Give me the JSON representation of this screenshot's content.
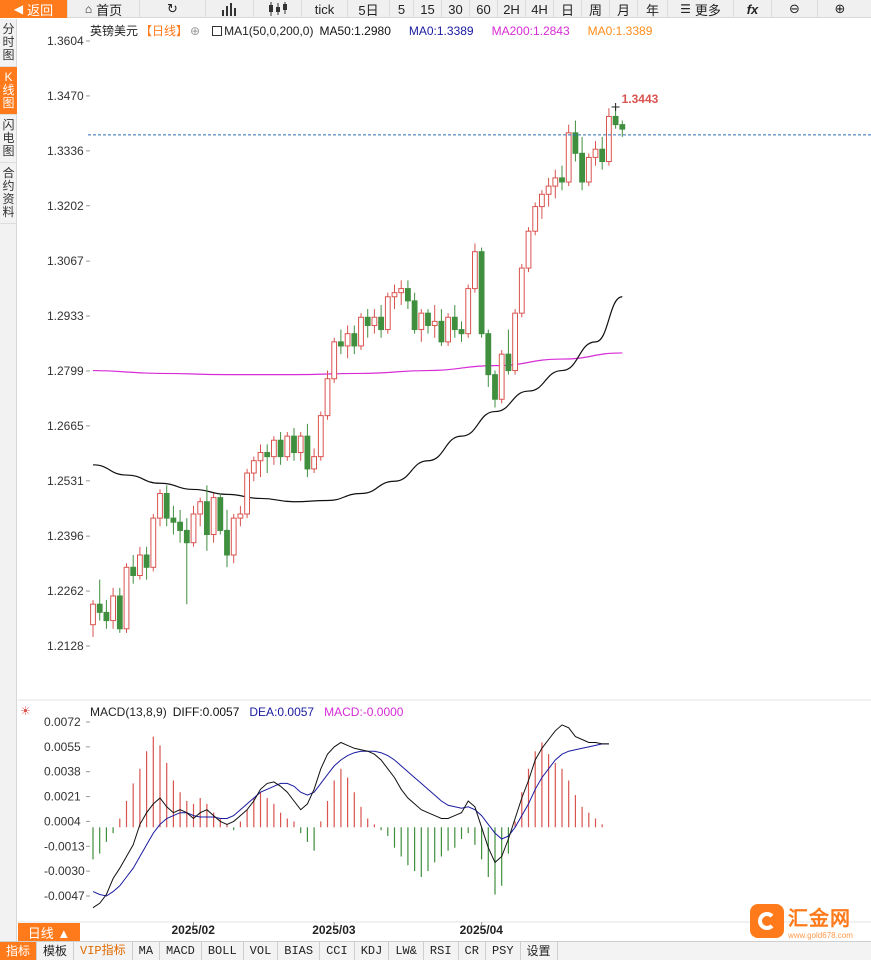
{
  "toolbar": {
    "back": "返回",
    "home": "首页",
    "tick": "tick",
    "periods": [
      "5日",
      "5",
      "15",
      "30",
      "60",
      "2H",
      "4H",
      "日",
      "周",
      "月",
      "年"
    ],
    "more": "更多",
    "fx": "fx"
  },
  "side_tabs": [
    "分时图",
    "K线图",
    "闪电图",
    "合约资料"
  ],
  "main_legend": {
    "symbol": "英镑美元",
    "period": "【日线】",
    "ma1": "MA1(50,0,200,0)",
    "ma50": "MA50:1.2980",
    "ma0a": "MA0:1.3389",
    "ma200": "MA200:1.2843",
    "ma0b": "MA0:1.3389",
    "colors": {
      "ma50": "#111111",
      "ma0a": "#1a1aa0",
      "ma200": "#d62bd6",
      "ma0b": "#ff8c1a"
    }
  },
  "macd_legend": {
    "title": "MACD(13,8,9)",
    "diff": "DIFF:0.0057",
    "dea": "DEA:0.0057",
    "macd": "MACD:-0.0000",
    "colors": {
      "diff": "#111111",
      "dea": "#1a1aa0",
      "macd": "#d62bd6"
    }
  },
  "price_axis": [
    "1.3604",
    "1.3470",
    "1.3336",
    "1.3202",
    "1.3067",
    "1.2933",
    "1.2799",
    "1.2665",
    "1.2531",
    "1.2396",
    "1.2262",
    "1.2128"
  ],
  "macd_axis": [
    "0.0072",
    "0.0055",
    "0.0038",
    "0.0021",
    "0.0004",
    "-0.0013",
    "-0.0030",
    "-0.0047"
  ],
  "date_labels": [
    "2025/02",
    "2025/03",
    "2025/04"
  ],
  "high_label": "1.3443",
  "current_price_line": 1.3375,
  "daily_button": "日线 ▲",
  "bottom_tabs": [
    "指标",
    "模板",
    "VIP指标",
    "MA",
    "MACD",
    "BOLL",
    "VOL",
    "BIAS",
    "CCI",
    "KDJ",
    "LW&",
    "RSI",
    "CR",
    "PSY",
    "设置"
  ],
  "brand": {
    "name": "汇金网",
    "url": "www.gold678.com"
  },
  "colors": {
    "up": "#d9534f",
    "down": "#3f8f3f",
    "accent": "#ff7a1a",
    "price_line": "#2a6fb3"
  },
  "chart_data": {
    "type": "candlestick",
    "title": "英镑美元 日线",
    "ylim": [
      1.2128,
      1.3604
    ],
    "candles": [
      [
        1.218,
        1.224,
        1.215,
        1.223
      ],
      [
        1.223,
        1.229,
        1.219,
        1.221
      ],
      [
        1.221,
        1.224,
        1.217,
        1.219
      ],
      [
        1.219,
        1.227,
        1.217,
        1.225
      ],
      [
        1.225,
        1.227,
        1.216,
        1.217
      ],
      [
        1.217,
        1.233,
        1.216,
        1.232
      ],
      [
        1.232,
        1.235,
        1.228,
        1.23
      ],
      [
        1.23,
        1.237,
        1.229,
        1.235
      ],
      [
        1.235,
        1.237,
        1.229,
        1.232
      ],
      [
        1.232,
        1.245,
        1.231,
        1.244
      ],
      [
        1.244,
        1.251,
        1.242,
        1.25
      ],
      [
        1.25,
        1.252,
        1.242,
        1.244
      ],
      [
        1.244,
        1.247,
        1.24,
        1.243
      ],
      [
        1.243,
        1.246,
        1.238,
        1.241
      ],
      [
        1.241,
        1.244,
        1.223,
        1.238
      ],
      [
        1.238,
        1.247,
        1.237,
        1.245
      ],
      [
        1.245,
        1.249,
        1.242,
        1.248
      ],
      [
        1.248,
        1.252,
        1.236,
        1.24
      ],
      [
        1.24,
        1.25,
        1.238,
        1.249
      ],
      [
        1.249,
        1.25,
        1.24,
        1.241
      ],
      [
        1.241,
        1.246,
        1.232,
        1.235
      ],
      [
        1.235,
        1.245,
        1.233,
        1.244
      ],
      [
        1.244,
        1.247,
        1.242,
        1.245
      ],
      [
        1.245,
        1.256,
        1.244,
        1.255
      ],
      [
        1.255,
        1.259,
        1.253,
        1.258
      ],
      [
        1.258,
        1.262,
        1.254,
        1.26
      ],
      [
        1.26,
        1.262,
        1.255,
        1.259
      ],
      [
        1.259,
        1.264,
        1.257,
        1.263
      ],
      [
        1.263,
        1.265,
        1.257,
        1.259
      ],
      [
        1.259,
        1.265,
        1.258,
        1.264
      ],
      [
        1.264,
        1.266,
        1.258,
        1.26
      ],
      [
        1.26,
        1.265,
        1.258,
        1.264
      ],
      [
        1.264,
        1.267,
        1.254,
        1.256
      ],
      [
        1.256,
        1.261,
        1.255,
        1.259
      ],
      [
        1.259,
        1.27,
        1.258,
        1.269
      ],
      [
        1.269,
        1.28,
        1.268,
        1.278
      ],
      [
        1.278,
        1.288,
        1.277,
        1.287
      ],
      [
        1.287,
        1.29,
        1.284,
        1.286
      ],
      [
        1.286,
        1.291,
        1.283,
        1.289
      ],
      [
        1.289,
        1.291,
        1.284,
        1.286
      ],
      [
        1.286,
        1.294,
        1.285,
        1.293
      ],
      [
        1.293,
        1.295,
        1.288,
        1.291
      ],
      [
        1.291,
        1.295,
        1.289,
        1.293
      ],
      [
        1.293,
        1.296,
        1.288,
        1.29
      ],
      [
        1.29,
        1.299,
        1.289,
        1.298
      ],
      [
        1.298,
        1.301,
        1.295,
        1.299
      ],
      [
        1.299,
        1.302,
        1.296,
        1.3
      ],
      [
        1.3,
        1.302,
        1.295,
        1.297
      ],
      [
        1.297,
        1.299,
        1.289,
        1.29
      ],
      [
        1.29,
        1.295,
        1.287,
        1.294
      ],
      [
        1.294,
        1.295,
        1.289,
        1.291
      ],
      [
        1.291,
        1.296,
        1.288,
        1.292
      ],
      [
        1.292,
        1.295,
        1.286,
        1.287
      ],
      [
        1.287,
        1.294,
        1.286,
        1.293
      ],
      [
        1.293,
        1.296,
        1.288,
        1.29
      ],
      [
        1.29,
        1.292,
        1.287,
        1.289
      ],
      [
        1.289,
        1.301,
        1.288,
        1.3
      ],
      [
        1.3,
        1.311,
        1.299,
        1.309
      ],
      [
        1.309,
        1.31,
        1.288,
        1.289
      ],
      [
        1.289,
        1.29,
        1.276,
        1.279
      ],
      [
        1.279,
        1.28,
        1.271,
        1.273
      ],
      [
        1.273,
        1.285,
        1.272,
        1.284
      ],
      [
        1.284,
        1.29,
        1.279,
        1.28
      ],
      [
        1.28,
        1.295,
        1.279,
        1.294
      ],
      [
        1.294,
        1.306,
        1.293,
        1.305
      ],
      [
        1.305,
        1.315,
        1.304,
        1.314
      ],
      [
        1.314,
        1.321,
        1.313,
        1.32
      ],
      [
        1.32,
        1.324,
        1.317,
        1.323
      ],
      [
        1.323,
        1.327,
        1.32,
        1.325
      ],
      [
        1.325,
        1.329,
        1.322,
        1.327
      ],
      [
        1.327,
        1.33,
        1.324,
        1.326
      ],
      [
        1.326,
        1.34,
        1.325,
        1.338
      ],
      [
        1.338,
        1.341,
        1.331,
        1.333
      ],
      [
        1.333,
        1.337,
        1.324,
        1.326
      ],
      [
        1.326,
        1.333,
        1.325,
        1.332
      ],
      [
        1.332,
        1.336,
        1.33,
        1.334
      ],
      [
        1.334,
        1.337,
        1.329,
        1.331
      ],
      [
        1.331,
        1.344,
        1.33,
        1.342
      ],
      [
        1.342,
        1.3443,
        1.339,
        1.34
      ],
      [
        1.34,
        1.341,
        1.337,
        1.3389
      ]
    ],
    "ma50": [
      [
        0,
        1.257
      ],
      [
        5,
        1.2545
      ],
      [
        10,
        1.2525
      ],
      [
        15,
        1.251
      ],
      [
        20,
        1.2498
      ],
      [
        25,
        1.2488
      ],
      [
        30,
        1.248
      ],
      [
        35,
        1.2483
      ],
      [
        40,
        1.25
      ],
      [
        45,
        1.253
      ],
      [
        50,
        1.258
      ],
      [
        55,
        1.264
      ],
      [
        60,
        1.27
      ],
      [
        65,
        1.275
      ],
      [
        70,
        1.28
      ],
      [
        75,
        1.287
      ],
      [
        79,
        1.298
      ]
    ],
    "ma200": [
      [
        0,
        1.28
      ],
      [
        10,
        1.2793
      ],
      [
        20,
        1.279
      ],
      [
        30,
        1.279
      ],
      [
        40,
        1.2793
      ],
      [
        50,
        1.28
      ],
      [
        60,
        1.2812
      ],
      [
        70,
        1.2828
      ],
      [
        79,
        1.2843
      ]
    ],
    "macd": {
      "ylim": [
        -0.0055,
        0.0078
      ],
      "hist": [
        -0.0022,
        -0.0018,
        -0.001,
        -0.0004,
        0.0006,
        0.0018,
        0.003,
        0.004,
        0.0052,
        0.0062,
        0.0056,
        0.0044,
        0.0032,
        0.0024,
        0.0018,
        0.0016,
        0.002,
        0.0016,
        0.001,
        0.0006,
        0.0002,
        -0.0002,
        0.0004,
        0.0012,
        0.002,
        0.0024,
        0.002,
        0.0016,
        0.001,
        0.0006,
        0.0004,
        -0.0004,
        -0.001,
        -0.0016,
        0.0004,
        0.0018,
        0.0032,
        0.004,
        0.0034,
        0.0024,
        0.0014,
        0.0006,
        0.0002,
        -0.0002,
        -0.0006,
        -0.0014,
        -0.002,
        -0.0026,
        -0.003,
        -0.0034,
        -0.003,
        -0.0024,
        -0.002,
        -0.0016,
        -0.0014,
        -0.0008,
        -0.0004,
        -0.0012,
        -0.0022,
        -0.0034,
        -0.0046,
        -0.004,
        -0.0018,
        0.0004,
        0.0024,
        0.004,
        0.0052,
        0.0058,
        0.005,
        0.0044,
        0.004,
        0.0032,
        0.0022,
        0.0014,
        0.001,
        0.0006,
        0.0002,
        0.0
      ],
      "diff": [
        -0.0055,
        -0.0052,
        -0.0046,
        -0.0035,
        -0.0028,
        -0.002,
        -0.0012,
        0.0002,
        0.001,
        0.0016,
        0.002,
        0.0014,
        0.001,
        0.0012,
        0.001,
        0.0006,
        0.001,
        0.0012,
        0.0008,
        0.0004,
        0.0002,
        0.0004,
        0.0008,
        0.0012,
        0.0018,
        0.0026,
        0.003,
        0.0031,
        0.0028,
        0.0024,
        0.0018,
        0.0012,
        0.0016,
        0.0026,
        0.004,
        0.005,
        0.0055,
        0.0058,
        0.0056,
        0.0054,
        0.0053,
        0.0052,
        0.005,
        0.0046,
        0.004,
        0.0034,
        0.0026,
        0.002,
        0.0016,
        0.0012,
        0.001,
        0.0008,
        0.0006,
        0.0006,
        0.0008,
        0.001,
        0.0018,
        0.0014,
        0.0,
        -0.0014,
        -0.0024,
        -0.002,
        -0.0008,
        0.0006,
        0.002,
        0.0032,
        0.0046,
        0.0054,
        0.006,
        0.0066,
        0.007,
        0.0068,
        0.0062,
        0.006,
        0.0058,
        0.0058,
        0.0057,
        0.0057
      ],
      "dea": [
        -0.0044,
        -0.0046,
        -0.0047,
        -0.0044,
        -0.004,
        -0.0034,
        -0.0028,
        -0.002,
        -0.0012,
        -0.0004,
        0.0002,
        0.0006,
        0.0008,
        0.001,
        0.001,
        0.0008,
        0.0007,
        0.0007,
        0.0007,
        0.0006,
        0.0006,
        0.0008,
        0.0012,
        0.0016,
        0.002,
        0.0024,
        0.0026,
        0.0028,
        0.003,
        0.003,
        0.0028,
        0.0024,
        0.0022,
        0.0024,
        0.003,
        0.0036,
        0.0042,
        0.0046,
        0.0049,
        0.0051,
        0.0052,
        0.0052,
        0.0052,
        0.0051,
        0.0049,
        0.0046,
        0.0042,
        0.0038,
        0.0034,
        0.003,
        0.0026,
        0.0022,
        0.0018,
        0.0015,
        0.0014,
        0.0013,
        0.0014,
        0.0012,
        0.0008,
        0.0002,
        -0.0004,
        -0.0008,
        -0.0006,
        0.0,
        0.0008,
        0.0016,
        0.0026,
        0.0034,
        0.004,
        0.0046,
        0.005,
        0.0052,
        0.0053,
        0.0054,
        0.0055,
        0.0056,
        0.0057,
        0.0057
      ]
    }
  }
}
